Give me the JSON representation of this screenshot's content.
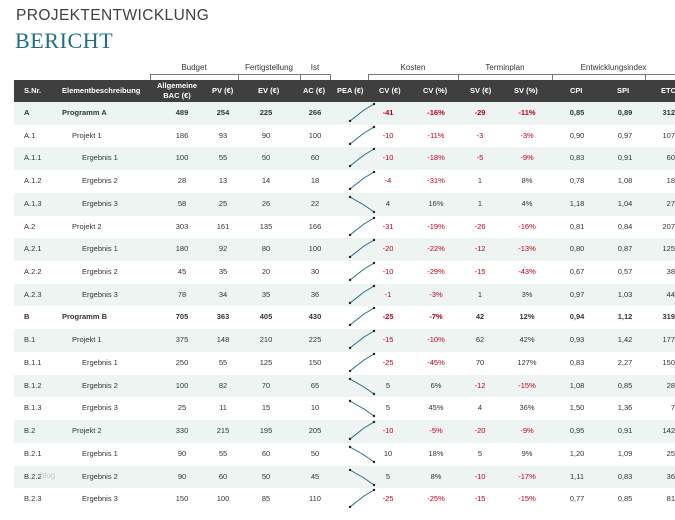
{
  "title": "PROJEKTENTWICKLUNG",
  "subtitle": "BERICHT",
  "groups": {
    "budget": "Budget",
    "fertigstellung": "Fertigstellung",
    "ist": "Ist",
    "kosten": "Kosten",
    "terminplan": "Terminplan",
    "entwicklungsindex": "Entwicklungsindex"
  },
  "bac_label_1": "Allgemeine",
  "bac_label_2": "BAC (€)",
  "columns": {
    "snr": "S.Nr.",
    "desc": "Elementbeschreibung",
    "pv": "PV (€)",
    "ev": "EV (€)",
    "ac": "AC (€)",
    "pea": "PEA (€)",
    "cv": "CV (€)",
    "cvp": "CV (%)",
    "sv": "SV (€)",
    "svp": "SV (%)",
    "cpi": "CPI",
    "spi": "SPI",
    "etc": "ETC"
  },
  "colors": {
    "header_bg": "#3f3f3f",
    "accent": "#1f6d87",
    "negative": "#c0001c",
    "band": "#eef4f2",
    "spark_line": "#1f6d87",
    "spark_dot": "#222222"
  },
  "watermark": "blog",
  "rows": [
    {
      "snr": "A",
      "desc": "Programm A",
      "bac": "489",
      "pv": "254",
      "ev": "225",
      "ac": "266",
      "cv": "-41",
      "cvp": "-16%",
      "sv": "-29",
      "svp": "-11%",
      "cpi": "0,85",
      "spi": "0,89",
      "etc": "312",
      "bold": true,
      "level": 0,
      "spark": [
        225,
        266
      ]
    },
    {
      "snr": "A.1",
      "desc": "Projekt 1",
      "bac": "186",
      "pv": "93",
      "ev": "90",
      "ac": "100",
      "cv": "-10",
      "cvp": "-11%",
      "sv": "-3",
      "svp": "-3%",
      "cpi": "0,90",
      "spi": "0,97",
      "etc": "107",
      "bold": false,
      "level": 1,
      "spark": [
        90,
        100
      ]
    },
    {
      "snr": "A.1.1",
      "desc": "Ergebnis 1",
      "bac": "100",
      "pv": "55",
      "ev": "50",
      "ac": "60",
      "cv": "-10",
      "cvp": "-18%",
      "sv": "-5",
      "svp": "-9%",
      "cpi": "0,83",
      "spi": "0,91",
      "etc": "60",
      "bold": false,
      "level": 2,
      "spark": [
        50,
        60
      ]
    },
    {
      "snr": "A.1.2",
      "desc": "Ergebnis 2",
      "bac": "28",
      "pv": "13",
      "ev": "14",
      "ac": "18",
      "cv": "-4",
      "cvp": "-31%",
      "sv": "1",
      "svp": "8%",
      "cpi": "0,78",
      "spi": "1,08",
      "etc": "18",
      "bold": false,
      "level": 2,
      "spark": [
        14,
        18
      ]
    },
    {
      "snr": "A.1.3",
      "desc": "Ergebnis 3",
      "bac": "58",
      "pv": "25",
      "ev": "26",
      "ac": "22",
      "cv": "4",
      "cvp": "16%",
      "sv": "1",
      "svp": "4%",
      "cpi": "1,18",
      "spi": "1,04",
      "etc": "27",
      "bold": false,
      "level": 2,
      "spark": [
        26,
        22
      ]
    },
    {
      "snr": "A.2",
      "desc": "Projekt 2",
      "bac": "303",
      "pv": "161",
      "ev": "135",
      "ac": "166",
      "cv": "-31",
      "cvp": "-19%",
      "sv": "-26",
      "svp": "-16%",
      "cpi": "0,81",
      "spi": "0,84",
      "etc": "207",
      "bold": false,
      "level": 1,
      "spark": [
        135,
        166
      ]
    },
    {
      "snr": "A.2.1",
      "desc": "Ergebnis 1",
      "bac": "180",
      "pv": "92",
      "ev": "80",
      "ac": "100",
      "cv": "-20",
      "cvp": "-22%",
      "sv": "-12",
      "svp": "-13%",
      "cpi": "0,80",
      "spi": "0,87",
      "etc": "125",
      "bold": false,
      "level": 2,
      "spark": [
        80,
        100
      ]
    },
    {
      "snr": "A.2.2",
      "desc": "Ergebnis 2",
      "bac": "45",
      "pv": "35",
      "ev": "20",
      "ac": "30",
      "cv": "-10",
      "cvp": "-29%",
      "sv": "-15",
      "svp": "-43%",
      "cpi": "0,67",
      "spi": "0,57",
      "etc": "38",
      "bold": false,
      "level": 2,
      "spark": [
        20,
        30
      ]
    },
    {
      "snr": "A.2.3",
      "desc": "Ergebnis 3",
      "bac": "78",
      "pv": "34",
      "ev": "35",
      "ac": "36",
      "cv": "-1",
      "cvp": "-3%",
      "sv": "1",
      "svp": "3%",
      "cpi": "0,97",
      "spi": "1,03",
      "etc": "44",
      "bold": false,
      "level": 2,
      "spark": [
        35,
        36
      ]
    },
    {
      "snr": "B",
      "desc": "Programm B",
      "bac": "705",
      "pv": "363",
      "ev": "405",
      "ac": "430",
      "cv": "-25",
      "cvp": "-7%",
      "sv": "42",
      "svp": "12%",
      "cpi": "0,94",
      "spi": "1,12",
      "etc": "319",
      "bold": true,
      "level": 0,
      "spark": [
        405,
        430
      ]
    },
    {
      "snr": "B.1",
      "desc": "Projekt 1",
      "bac": "375",
      "pv": "148",
      "ev": "210",
      "ac": "225",
      "cv": "-15",
      "cvp": "-10%",
      "sv": "62",
      "svp": "42%",
      "cpi": "0,93",
      "spi": "1,42",
      "etc": "177",
      "bold": false,
      "level": 1,
      "spark": [
        210,
        225
      ]
    },
    {
      "snr": "B.1.1",
      "desc": "Ergebnis 1",
      "bac": "250",
      "pv": "55",
      "ev": "125",
      "ac": "150",
      "cv": "-25",
      "cvp": "-45%",
      "sv": "70",
      "svp": "127%",
      "cpi": "0,83",
      "spi": "2,27",
      "etc": "150",
      "bold": false,
      "level": 2,
      "spark": [
        125,
        150
      ]
    },
    {
      "snr": "B.1.2",
      "desc": "Ergebnis 2",
      "bac": "100",
      "pv": "82",
      "ev": "70",
      "ac": "65",
      "cv": "5",
      "cvp": "6%",
      "sv": "-12",
      "svp": "-15%",
      "cpi": "1,08",
      "spi": "0,85",
      "etc": "28",
      "bold": false,
      "level": 2,
      "spark": [
        70,
        65
      ]
    },
    {
      "snr": "B.1.3",
      "desc": "Ergebnis 3",
      "bac": "25",
      "pv": "11",
      "ev": "15",
      "ac": "10",
      "cv": "5",
      "cvp": "45%",
      "sv": "4",
      "svp": "36%",
      "cpi": "1,50",
      "spi": "1,36",
      "etc": "7",
      "bold": false,
      "level": 2,
      "spark": [
        15,
        10
      ]
    },
    {
      "snr": "B.2",
      "desc": "Projekt 2",
      "bac": "330",
      "pv": "215",
      "ev": "195",
      "ac": "205",
      "cv": "-10",
      "cvp": "-5%",
      "sv": "-20",
      "svp": "-9%",
      "cpi": "0,95",
      "spi": "0,91",
      "etc": "142",
      "bold": false,
      "level": 1,
      "spark": [
        195,
        205
      ]
    },
    {
      "snr": "B.2.1",
      "desc": "Ergebnis 1",
      "bac": "90",
      "pv": "55",
      "ev": "60",
      "ac": "50",
      "cv": "10",
      "cvp": "18%",
      "sv": "5",
      "svp": "9%",
      "cpi": "1,20",
      "spi": "1,09",
      "etc": "25",
      "bold": false,
      "level": 2,
      "spark": [
        60,
        50
      ]
    },
    {
      "snr": "B.2.2",
      "desc": "Ergebnis 2",
      "bac": "90",
      "pv": "60",
      "ev": "50",
      "ac": "45",
      "cv": "5",
      "cvp": "8%",
      "sv": "-10",
      "svp": "-17%",
      "cpi": "1,11",
      "spi": "0,83",
      "etc": "36",
      "bold": false,
      "level": 2,
      "spark": [
        50,
        45
      ]
    },
    {
      "snr": "B.2.3",
      "desc": "Ergebnis 3",
      "bac": "150",
      "pv": "100",
      "ev": "85",
      "ac": "110",
      "cv": "-25",
      "cvp": "-25%",
      "sv": "-15",
      "svp": "-15%",
      "cpi": "0,77",
      "spi": "0,85",
      "etc": "81",
      "bold": false,
      "level": 2,
      "spark": [
        85,
        110
      ]
    }
  ]
}
